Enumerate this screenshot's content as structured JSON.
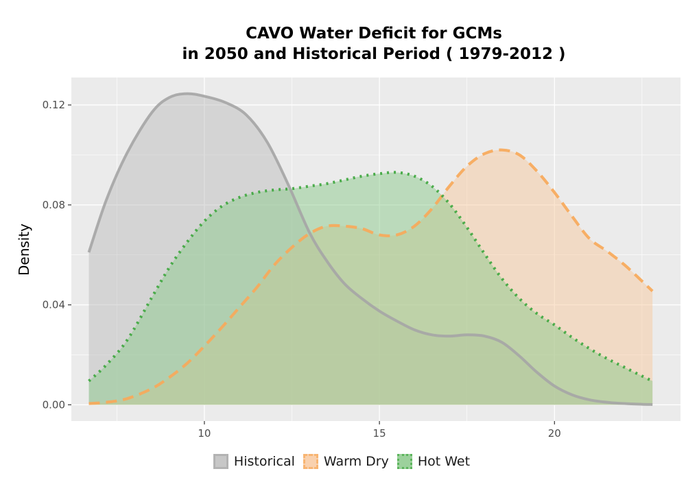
{
  "chart_data": {
    "type": "area",
    "title_lines": [
      "CAVO  Water Deficit for GCMs",
      "in 2050 and Historical Period ( 1979-2012 )"
    ],
    "xlabel": "",
    "ylabel": "Density",
    "xlim": [
      6.2,
      23.6
    ],
    "ylim": [
      -0.0065,
      0.131
    ],
    "x_ticks": [
      10,
      15,
      20
    ],
    "x_tick_labels": [
      "10",
      "15",
      "20"
    ],
    "y_ticks": [
      0.0,
      0.04,
      0.08,
      0.12
    ],
    "y_tick_labels": [
      "0.00",
      "0.04",
      "0.08",
      "0.12"
    ],
    "grid": true,
    "legend_position": "bottom",
    "series": [
      {
        "name": "Historical",
        "line_style": "solid",
        "line_color": "#A6A6A6",
        "fill_color": "#BEBEBE",
        "x": [
          6.7,
          7.2,
          7.8,
          8.5,
          9.0,
          9.5,
          10.0,
          10.6,
          11.2,
          11.8,
          12.4,
          13.0,
          13.5,
          14.0,
          14.5,
          15.0,
          15.5,
          16.0,
          16.5,
          17.0,
          17.5,
          18.0,
          18.5,
          19.0,
          19.5,
          20.0,
          20.5,
          21.0,
          21.5,
          22.0,
          22.5,
          22.8
        ],
        "y": [
          0.061,
          0.082,
          0.101,
          0.117,
          0.123,
          0.1245,
          0.1235,
          0.121,
          0.116,
          0.105,
          0.088,
          0.069,
          0.0575,
          0.0485,
          0.0425,
          0.0375,
          0.0335,
          0.03,
          0.028,
          0.0275,
          0.028,
          0.0275,
          0.025,
          0.0195,
          0.013,
          0.0075,
          0.004,
          0.002,
          0.001,
          0.0005,
          0.0002,
          0.0001
        ]
      },
      {
        "name": "Warm Dry",
        "line_style": "dashed",
        "line_color": "#F7A95A",
        "fill_color": "#F8C9A0",
        "x": [
          6.7,
          7.2,
          7.8,
          8.5,
          9.0,
          9.5,
          10.0,
          10.5,
          11.0,
          11.5,
          12.0,
          12.5,
          13.0,
          13.5,
          14.0,
          14.5,
          15.0,
          15.5,
          16.0,
          16.5,
          17.0,
          17.5,
          18.0,
          18.5,
          19.0,
          19.5,
          20.0,
          20.5,
          21.0,
          21.5,
          22.0,
          22.5,
          22.8
        ],
        "y": [
          0.0005,
          0.001,
          0.0025,
          0.0065,
          0.011,
          0.0165,
          0.0235,
          0.031,
          0.039,
          0.047,
          0.056,
          0.063,
          0.0685,
          0.0715,
          0.0715,
          0.0705,
          0.068,
          0.068,
          0.0715,
          0.0785,
          0.0875,
          0.0955,
          0.1005,
          0.102,
          0.1,
          0.0935,
          0.085,
          0.0755,
          0.0665,
          0.0615,
          0.056,
          0.0495,
          0.0455
        ]
      },
      {
        "name": "Hot Wet",
        "line_style": "dotted",
        "line_color": "#3FA73F",
        "fill_color": "#8BC98B",
        "x": [
          6.7,
          7.2,
          7.8,
          8.5,
          9.0,
          9.5,
          10.0,
          10.5,
          11.0,
          11.5,
          12.0,
          12.5,
          13.0,
          13.5,
          14.0,
          14.5,
          15.0,
          15.5,
          16.0,
          16.5,
          17.0,
          17.5,
          18.0,
          18.5,
          19.0,
          19.5,
          20.0,
          20.5,
          21.0,
          21.5,
          22.0,
          22.5,
          22.8
        ],
        "y": [
          0.0095,
          0.016,
          0.026,
          0.043,
          0.055,
          0.065,
          0.0735,
          0.0795,
          0.083,
          0.085,
          0.086,
          0.0865,
          0.0875,
          0.0885,
          0.09,
          0.0915,
          0.0925,
          0.093,
          0.0915,
          0.0875,
          0.0805,
          0.071,
          0.0605,
          0.0505,
          0.0425,
          0.0365,
          0.032,
          0.027,
          0.0225,
          0.0185,
          0.015,
          0.0115,
          0.0095
        ]
      }
    ]
  }
}
